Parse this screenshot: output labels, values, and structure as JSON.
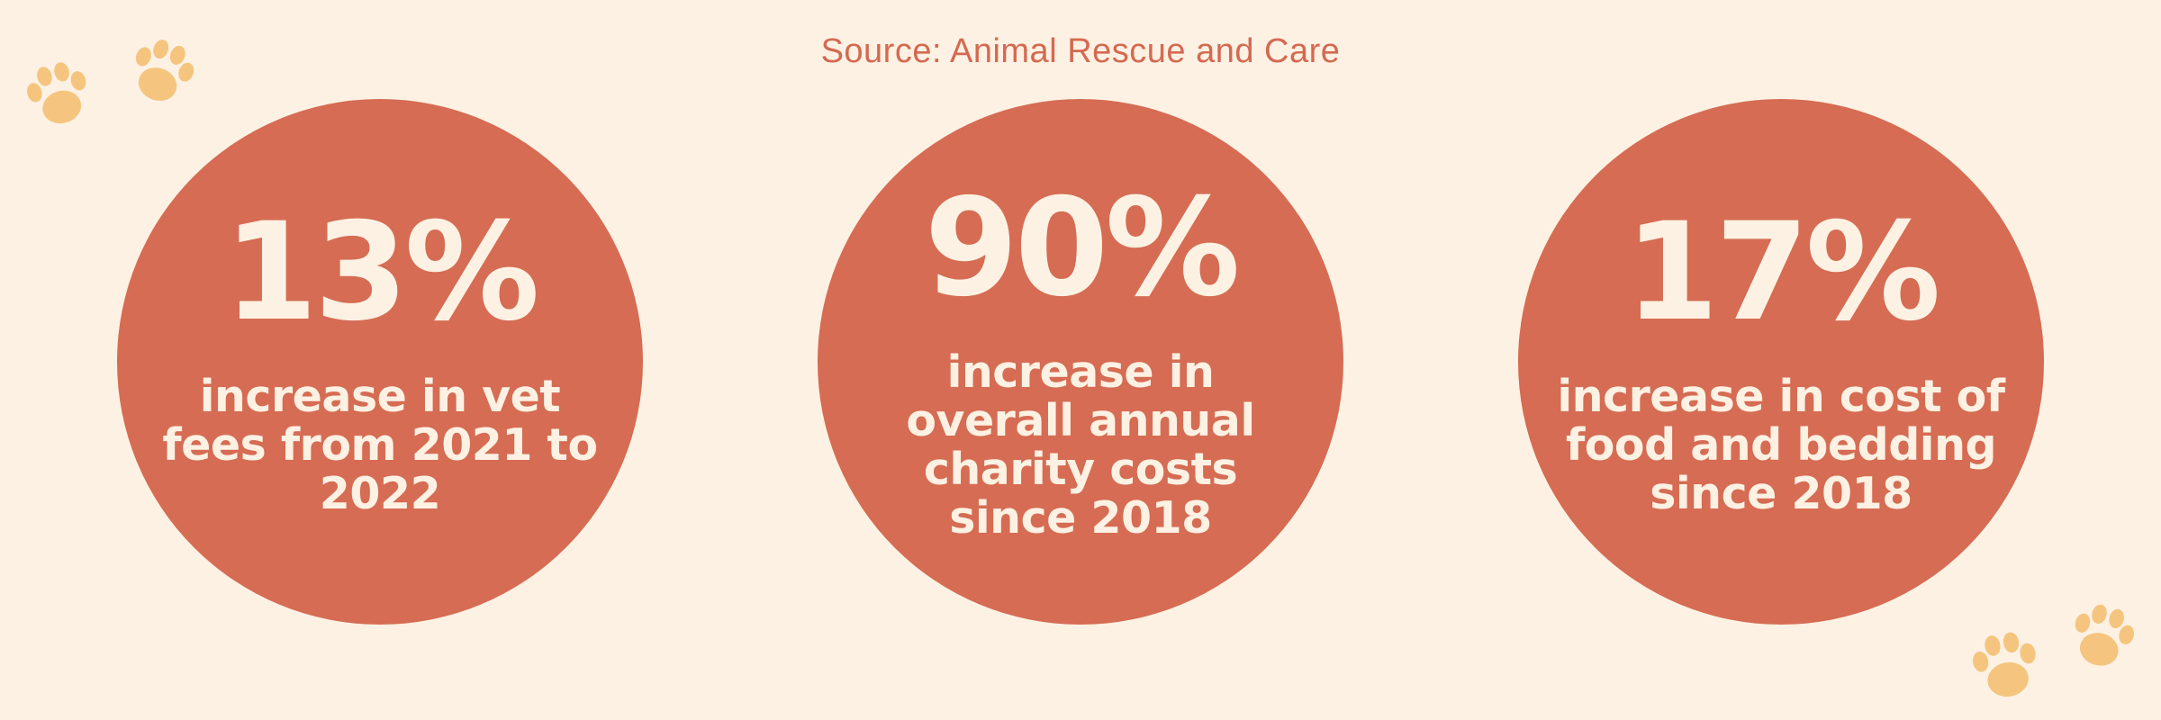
{
  "source": "Source: Animal Rescue and Care",
  "stats": [
    {
      "value": "13%",
      "description": "increase in vet fees from 2021 to 2022"
    },
    {
      "value": "90%",
      "description": "increase in overall annual charity costs since 2018"
    },
    {
      "value": "17%",
      "description": "increase in cost of food and bedding since 2018"
    }
  ],
  "colors": {
    "background": "#fdf1e3",
    "circle": "#d56c53",
    "text_light": "#fdf1e3",
    "source_text": "#d46a51",
    "paw": "#f5c57f"
  },
  "icons": [
    "paw-print-icon"
  ]
}
